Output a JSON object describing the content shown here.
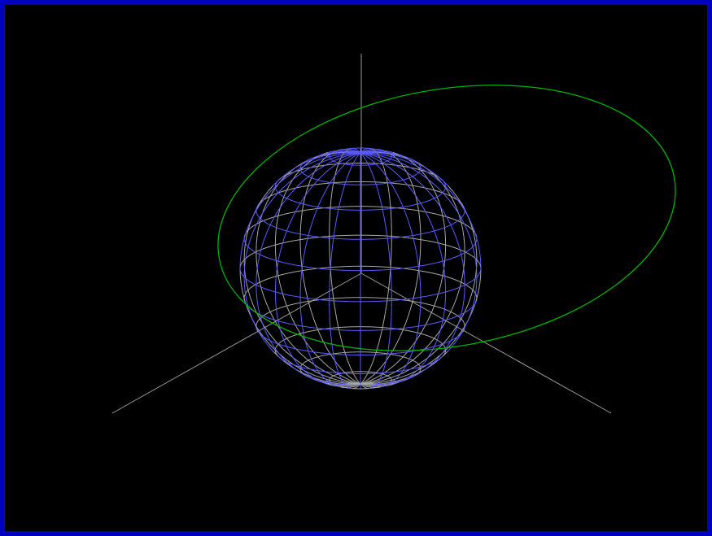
{
  "viewport": {
    "background": "#000000",
    "frame_color": "#0000c0"
  },
  "scene": {
    "axes_color": "#9a9a9a",
    "sphere_back_color": "#a8a8a8",
    "sphere_front_color": "#5a5aff",
    "orbit_color": "#00b400",
    "sphere_meridians": 24,
    "sphere_parallels": 12
  }
}
